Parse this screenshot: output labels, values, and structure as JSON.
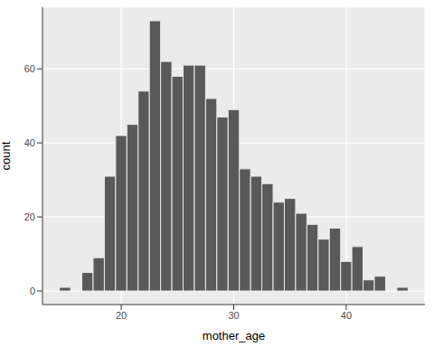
{
  "chart_data": {
    "type": "histogram",
    "x_label": "mother_age",
    "y_label": "count",
    "bins": [
      14.5,
      15.5,
      16.5,
      17.5,
      18.5,
      19.5,
      20.5,
      21.5,
      22.5,
      23.5,
      24.5,
      25.5,
      26.5,
      27.5,
      28.5,
      29.5,
      30.5,
      31.5,
      32.5,
      33.5,
      34.5,
      35.5,
      36.5,
      37.5,
      38.5,
      39.5,
      40.5,
      41.5,
      42.5,
      43.5,
      44.5,
      45.5
    ],
    "counts": [
      1,
      0,
      5,
      9,
      31,
      42,
      45,
      54,
      73,
      62,
      58,
      61,
      61,
      52,
      47,
      49,
      33,
      31,
      29,
      24,
      25,
      21,
      18,
      14,
      17,
      8,
      12,
      3,
      4,
      0,
      1
    ],
    "color": "#595959",
    "xlim": [
      13,
      47
    ],
    "ylim": [
      -3.65,
      76.65
    ],
    "xticks": [
      20,
      30,
      40
    ],
    "yticks": [
      0,
      20,
      40,
      60
    ],
    "grid": true
  }
}
